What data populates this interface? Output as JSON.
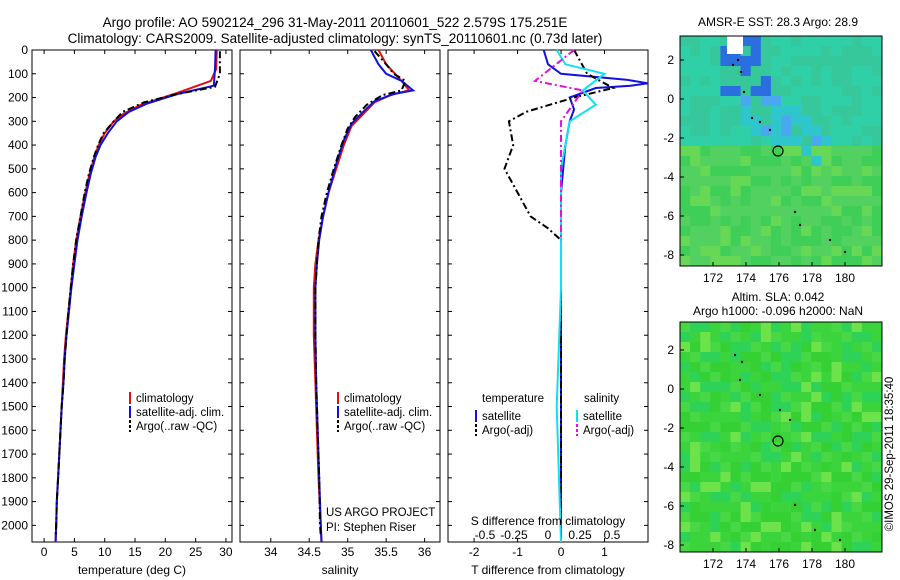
{
  "header": {
    "title_line1": "Argo profile: AO 5902124_296 31-May-2011 20110601_522 2.579S 175.251E",
    "title_line2": "Climatology: CARS2009. Satellite-adjusted climatology: synTS_20110601.nc (0.73d later)"
  },
  "colors": {
    "climatology": "#e01010",
    "satellite": "#1010e0",
    "argo": "#000000",
    "sal_satellite": "#10e0f0",
    "sal_argo": "#e010e0"
  },
  "chart_data": [
    {
      "type": "line",
      "xlabel": "temperature (deg C)",
      "ylabel": "",
      "xlim": [
        -2,
        31
      ],
      "ylim": [
        2070,
        0
      ],
      "xticks": [
        "0",
        "5",
        "10",
        "15",
        "20",
        "25",
        "30"
      ],
      "yticks": [
        "0",
        "100",
        "200",
        "300",
        "400",
        "500",
        "600",
        "700",
        "800",
        "900",
        "1000",
        "1100",
        "1200",
        "1300",
        "1400",
        "1500",
        "1600",
        "1700",
        "1800",
        "1900",
        "2000"
      ],
      "legend": {
        "position": "bottom-right",
        "entries": [
          "climatology",
          "satellite-adj. clim.",
          "Argo(..raw -QC)"
        ]
      },
      "series": [
        {
          "name": "climatology",
          "color": "#e01010",
          "points": [
            [
              28.5,
              0
            ],
            [
              28.4,
              80
            ],
            [
              27.5,
              130
            ],
            [
              22,
              180
            ],
            [
              16,
              230
            ],
            [
              13,
              270
            ],
            [
              11.5,
              300
            ],
            [
              10,
              350
            ],
            [
              9,
              400
            ],
            [
              8.3,
              450
            ],
            [
              7.5,
              520
            ],
            [
              6.8,
              600
            ],
            [
              6,
              700
            ],
            [
              5.3,
              800
            ],
            [
              4.8,
              900
            ],
            [
              4.4,
              1000
            ],
            [
              4,
              1100
            ],
            [
              3.6,
              1200
            ],
            [
              3.3,
              1300
            ],
            [
              3.1,
              1400
            ],
            [
              2.9,
              1500
            ],
            [
              2.7,
              1600
            ],
            [
              2.5,
              1700
            ],
            [
              2.3,
              1800
            ],
            [
              2.1,
              1900
            ],
            [
              2,
              2000
            ],
            [
              1.9,
              2070
            ]
          ]
        },
        {
          "name": "satellite-adj. clim.",
          "color": "#1010e0",
          "points": [
            [
              28.3,
              0
            ],
            [
              28.2,
              80
            ],
            [
              28,
              150
            ],
            [
              26,
              162
            ],
            [
              22,
              185
            ],
            [
              17,
              225
            ],
            [
              14,
              260
            ],
            [
              12,
              300
            ],
            [
              10.5,
              350
            ],
            [
              9.3,
              400
            ],
            [
              8.5,
              450
            ],
            [
              7.7,
              520
            ],
            [
              7,
              600
            ],
            [
              6.2,
              700
            ],
            [
              5.5,
              800
            ],
            [
              5,
              900
            ],
            [
              4.5,
              1000
            ],
            [
              4.1,
              1100
            ],
            [
              3.7,
              1200
            ],
            [
              3.4,
              1300
            ],
            [
              3.2,
              1400
            ],
            [
              2.9,
              1500
            ],
            [
              2.7,
              1600
            ],
            [
              2.5,
              1700
            ],
            [
              2.3,
              1800
            ],
            [
              2.1,
              1900
            ],
            [
              2,
              2000
            ],
            [
              1.9,
              2070
            ]
          ]
        },
        {
          "name": "Argo(..raw -QC)",
          "color": "#000000",
          "dashed": true,
          "points": [
            [
              29,
              5
            ],
            [
              29,
              60
            ],
            [
              29,
              100
            ],
            [
              28.2,
              155
            ],
            [
              22,
              185
            ],
            [
              16.5,
              220
            ],
            [
              13,
              260
            ],
            [
              11.5,
              300
            ],
            [
              9.8,
              350
            ],
            [
              8.9,
              400
            ],
            [
              8.2,
              450
            ],
            [
              7.4,
              520
            ],
            [
              6.7,
              600
            ],
            [
              6,
              700
            ],
            [
              5.3,
              800
            ],
            [
              4.8,
              900
            ],
            [
              4.4,
              1000
            ],
            [
              4,
              1100
            ],
            [
              3.7,
              1200
            ],
            [
              3.4,
              1300
            ],
            [
              3.2,
              1400
            ],
            [
              2.9,
              1500
            ],
            [
              2.7,
              1600
            ],
            [
              2.5,
              1700
            ],
            [
              2.3,
              1800
            ],
            [
              2.1,
              1900
            ],
            [
              2,
              2000
            ],
            [
              1.9,
              2045
            ]
          ]
        }
      ]
    },
    {
      "type": "line",
      "xlabel": "salinity",
      "xlim": [
        33.6,
        36.2
      ],
      "ylim": [
        2070,
        0
      ],
      "xticks": [
        "34",
        "34.5",
        "35",
        "35.5",
        "36"
      ],
      "legend": {
        "position": "bottom-right",
        "entries": [
          "climatology",
          "satellite-adj. clim.",
          "Argo(..raw -QC)"
        ]
      },
      "annotation": [
        "US ARGO PROJECT",
        "PI: Stephen Riser"
      ],
      "series": [
        {
          "name": "climatology",
          "color": "#e01010",
          "points": [
            [
              35.4,
              0
            ],
            [
              35.5,
              60
            ],
            [
              35.7,
              130
            ],
            [
              35.8,
              170
            ],
            [
              35.55,
              190
            ],
            [
              35.35,
              220
            ],
            [
              35.2,
              270
            ],
            [
              35.05,
              320
            ],
            [
              34.95,
              400
            ],
            [
              34.85,
              500
            ],
            [
              34.75,
              600
            ],
            [
              34.68,
              700
            ],
            [
              34.62,
              800
            ],
            [
              34.58,
              900
            ],
            [
              34.56,
              1000
            ],
            [
              34.56,
              1200
            ],
            [
              34.58,
              1400
            ],
            [
              34.6,
              1600
            ],
            [
              34.62,
              1800
            ],
            [
              34.65,
              2000
            ],
            [
              34.66,
              2070
            ]
          ]
        },
        {
          "name": "satellite-adj. clim.",
          "color": "#1010e0",
          "points": [
            [
              35.3,
              0
            ],
            [
              35.4,
              60
            ],
            [
              35.5,
              100
            ],
            [
              35.7,
              130
            ],
            [
              35.85,
              170
            ],
            [
              35.6,
              185
            ],
            [
              35.35,
              215
            ],
            [
              35.2,
              260
            ],
            [
              35.05,
              310
            ],
            [
              34.95,
              380
            ],
            [
              34.85,
              480
            ],
            [
              34.75,
              600
            ],
            [
              34.68,
              700
            ],
            [
              34.63,
              800
            ],
            [
              34.6,
              900
            ],
            [
              34.58,
              1000
            ],
            [
              34.58,
              1200
            ],
            [
              34.59,
              1400
            ],
            [
              34.61,
              1600
            ],
            [
              34.63,
              1800
            ],
            [
              34.65,
              2000
            ],
            [
              34.66,
              2070
            ]
          ]
        },
        {
          "name": "Argo(..raw -QC)",
          "color": "#000000",
          "dashed": true,
          "points": [
            [
              35.35,
              5
            ],
            [
              35.5,
              60
            ],
            [
              35.6,
              100
            ],
            [
              35.75,
              130
            ],
            [
              35.7,
              170
            ],
            [
              35.45,
              190
            ],
            [
              35.25,
              230
            ],
            [
              35.1,
              280
            ],
            [
              35,
              330
            ],
            [
              34.92,
              400
            ],
            [
              34.82,
              500
            ],
            [
              34.73,
              600
            ],
            [
              34.66,
              700
            ],
            [
              34.62,
              800
            ],
            [
              34.6,
              900
            ],
            [
              34.58,
              1000
            ],
            [
              34.58,
              1200
            ],
            [
              34.59,
              1400
            ],
            [
              34.61,
              1600
            ],
            [
              34.63,
              1800
            ],
            [
              34.64,
              2000
            ],
            [
              34.65,
              2045
            ]
          ]
        }
      ]
    },
    {
      "type": "line",
      "xlabel": "T difference from climatology",
      "xlabel_top": "S difference from climatology",
      "xlim": [
        -2.6,
        2.0
      ],
      "ylim": [
        2070,
        0
      ],
      "xticks": [
        "-2",
        "-1",
        "0",
        "1"
      ],
      "xticks_top": [
        "-0.5",
        "-0.25",
        "0",
        "0.25",
        "0.5"
      ],
      "legend": {
        "position": "bottom",
        "col1_title": "temperature",
        "col2_title": "salinity",
        "entries": [
          "satellite",
          "Argo(-adj)",
          "satellite",
          "Argo(-adj)"
        ]
      },
      "series": [
        {
          "name": "temperature satellite",
          "color": "#1010e0",
          "points": [
            [
              -0.4,
              0
            ],
            [
              -0.3,
              60
            ],
            [
              0,
              100
            ],
            [
              1.5,
              125
            ],
            [
              2,
              140
            ],
            [
              1.6,
              150
            ],
            [
              0.8,
              160
            ],
            [
              0.2,
              200
            ],
            [
              0.3,
              250
            ],
            [
              0.2,
              300
            ],
            [
              0.1,
              400
            ],
            [
              0.05,
              500
            ],
            [
              0,
              600
            ],
            [
              0,
              800
            ],
            [
              0,
              1000
            ],
            [
              0,
              1500
            ],
            [
              0,
              2070
            ]
          ]
        },
        {
          "name": "temperature Argo(-adj)",
          "color": "#000000",
          "dashed": true,
          "points": [
            [
              0.3,
              0
            ],
            [
              0.6,
              100
            ],
            [
              1.2,
              160
            ],
            [
              0.3,
              200
            ],
            [
              -0.8,
              260
            ],
            [
              -1.2,
              300
            ],
            [
              -1.1,
              400
            ],
            [
              -1.3,
              500
            ],
            [
              -1.0,
              600
            ],
            [
              -0.7,
              700
            ],
            [
              -0.3,
              750
            ],
            [
              0,
              800
            ],
            [
              0,
              1000
            ],
            [
              0,
              2045
            ]
          ]
        },
        {
          "name": "salinity satellite",
          "color": "#10e0f0",
          "points": [
            [
              -0.1,
              0
            ],
            [
              0.1,
              60
            ],
            [
              1,
              100
            ],
            [
              0.5,
              170
            ],
            [
              0.8,
              230
            ],
            [
              0.2,
              300
            ],
            [
              0,
              500
            ],
            [
              0,
              1000
            ],
            [
              -0.1,
              1500
            ],
            [
              0,
              2070
            ]
          ]
        },
        {
          "name": "salinity Argo(-adj)",
          "color": "#e010e0",
          "dashed": true,
          "points": [
            [
              0.3,
              0
            ],
            [
              -0.6,
              130
            ],
            [
              0.5,
              170
            ],
            [
              0,
              300
            ],
            [
              0,
              600
            ],
            [
              0,
              800
            ]
          ]
        }
      ]
    }
  ],
  "maps": [
    {
      "title": "AMSR-E SST: 28.3 Argo: 28.9",
      "xticks": [
        "172",
        "174",
        "176",
        "178",
        "180"
      ],
      "yticks": [
        "2",
        "0",
        "-2",
        "-4",
        "-6",
        "-8"
      ]
    },
    {
      "title_line1": "Altim. SLA: 0.042",
      "title_line2": "Argo h1000: -0.096 h2000: NaN",
      "xticks": [
        "172",
        "174",
        "176",
        "178",
        "180"
      ],
      "yticks": [
        "2",
        "0",
        "-2",
        "-4",
        "-6",
        "-8"
      ]
    }
  ],
  "stamp": "©IMOS 29-Sep-2011 18:35:40"
}
